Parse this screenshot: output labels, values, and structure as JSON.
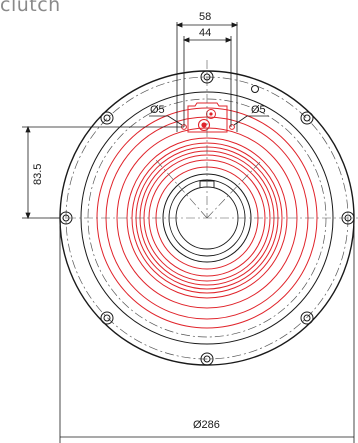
{
  "header": {
    "title_fragment": "clutch"
  },
  "drawing": {
    "dimensions": {
      "outer_width": "58",
      "inner_width": "44",
      "left_hole": "Ø5",
      "right_hole": "Ø5",
      "vertical_offset": "83.5",
      "diameter": "Ø286"
    },
    "colors": {
      "outline": "#1a1a1a",
      "coil": "#e0242b",
      "centerline": "#555555"
    }
  }
}
